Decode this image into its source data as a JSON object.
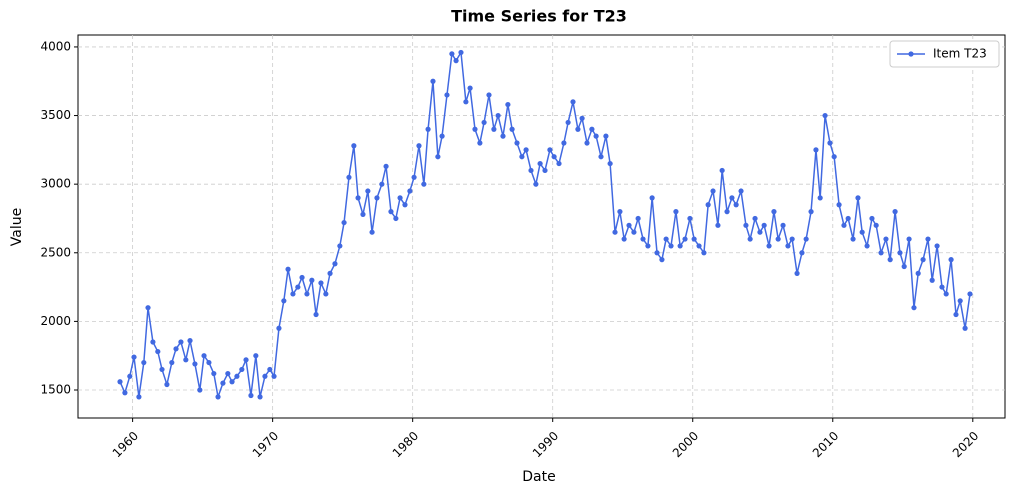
{
  "chart_data": {
    "type": "line",
    "title": "Time Series for T23",
    "x_label": "Date",
    "y_label": "Value",
    "x": [
      1959.1,
      1959.45,
      1959.8,
      1960.1,
      1960.45,
      1960.8,
      1961.1,
      1961.45,
      1961.8,
      1962.1,
      1962.45,
      1962.8,
      1963.1,
      1963.45,
      1963.8,
      1964.1,
      1964.45,
      1964.8,
      1965.1,
      1965.45,
      1965.8,
      1966.1,
      1966.45,
      1966.8,
      1967.1,
      1967.45,
      1967.8,
      1968.1,
      1968.45,
      1968.8,
      1969.1,
      1969.45,
      1969.8,
      1970.1,
      1970.45,
      1970.8,
      1971.1,
      1971.45,
      1971.8,
      1972.1,
      1972.45,
      1972.8,
      1973.1,
      1973.45,
      1973.8,
      1974.1,
      1974.45,
      1974.8,
      1975.1,
      1975.45,
      1975.8,
      1976.1,
      1976.45,
      1976.8,
      1977.1,
      1977.45,
      1977.8,
      1978.1,
      1978.45,
      1978.8,
      1979.1,
      1979.45,
      1979.8,
      1980.1,
      1980.45,
      1980.8,
      1981.1,
      1981.45,
      1981.8,
      1982.1,
      1982.45,
      1982.8,
      1983.1,
      1983.45,
      1983.8,
      1984.1,
      1984.45,
      1984.8,
      1985.1,
      1985.45,
      1985.8,
      1986.1,
      1986.45,
      1986.8,
      1987.1,
      1987.45,
      1987.8,
      1988.1,
      1988.45,
      1988.8,
      1989.1,
      1989.45,
      1989.8,
      1990.1,
      1990.45,
      1990.8,
      1991.1,
      1991.45,
      1991.8,
      1992.1,
      1992.45,
      1992.8,
      1993.1,
      1993.45,
      1993.8,
      1994.1,
      1994.45,
      1994.8,
      1995.1,
      1995.45,
      1995.8,
      1996.1,
      1996.45,
      1996.8,
      1997.1,
      1997.45,
      1997.8,
      1998.1,
      1998.45,
      1998.8,
      1999.1,
      1999.45,
      1999.8,
      2000.1,
      2000.45,
      2000.8,
      2001.1,
      2001.45,
      2001.8,
      2002.1,
      2002.45,
      2002.8,
      2003.1,
      2003.45,
      2003.8,
      2004.1,
      2004.45,
      2004.8,
      2005.1,
      2005.45,
      2005.8,
      2006.1,
      2006.45,
      2006.8,
      2007.1,
      2007.45,
      2007.8,
      2008.1,
      2008.45,
      2008.8,
      2009.1,
      2009.45,
      2009.8,
      2010.1,
      2010.45,
      2010.8,
      2011.1,
      2011.45,
      2011.8,
      2012.1,
      2012.45,
      2012.8,
      2013.1,
      2013.45,
      2013.8,
      2014.1,
      2014.45,
      2014.8,
      2015.1,
      2015.45,
      2015.8,
      2016.1,
      2016.45,
      2016.8,
      2017.1,
      2017.45,
      2017.8,
      2018.1,
      2018.45,
      2018.8,
      2019.1,
      2019.45,
      2019.8
    ],
    "series": [
      {
        "name": "Item T23",
        "color": "#4169e1",
        "values": [
          1560,
          1480,
          1600,
          1740,
          1450,
          1700,
          2100,
          1850,
          1780,
          1650,
          1540,
          1700,
          1800,
          1850,
          1720,
          1860,
          1690,
          1500,
          1750,
          1700,
          1620,
          1450,
          1550,
          1620,
          1560,
          1600,
          1650,
          1720,
          1460,
          1750,
          1450,
          1600,
          1650,
          1600,
          1950,
          2150,
          2380,
          2200,
          2250,
          2320,
          2200,
          2300,
          2050,
          2280,
          2200,
          2350,
          2420,
          2550,
          2720,
          3050,
          3280,
          2900,
          2780,
          2950,
          2650,
          2900,
          3000,
          3130,
          2800,
          2750,
          2900,
          2850,
          2950,
          3050,
          3280,
          3000,
          3400,
          3750,
          3200,
          3350,
          3650,
          3950,
          3900,
          3960,
          3600,
          3700,
          3400,
          3300,
          3450,
          3650,
          3400,
          3500,
          3350,
          3580,
          3400,
          3300,
          3200,
          3250,
          3100,
          3000,
          3150,
          3100,
          3250,
          3200,
          3150,
          3300,
          3450,
          3600,
          3400,
          3480,
          3300,
          3400,
          3350,
          3200,
          3350,
          3150,
          2650,
          2800,
          2600,
          2700,
          2650,
          2750,
          2600,
          2550,
          2900,
          2500,
          2450,
          2600,
          2550,
          2800,
          2550,
          2600,
          2750,
          2600,
          2550,
          2500,
          2850,
          2950,
          2700,
          3100,
          2800,
          2900,
          2850,
          2950,
          2700,
          2600,
          2750,
          2650,
          2700,
          2550,
          2800,
          2600,
          2700,
          2550,
          2600,
          2350,
          2500,
          2600,
          2800,
          3250,
          2900,
          3500,
          3300,
          3200,
          2850,
          2700,
          2750,
          2600,
          2900,
          2650,
          2550,
          2750,
          2700,
          2500,
          2600,
          2450,
          2800,
          2500,
          2400,
          2600,
          2100,
          2350,
          2450,
          2600,
          2300,
          2550,
          2250,
          2200,
          2450,
          2050,
          2150,
          1950,
          2200
        ]
      }
    ],
    "xlim": [
      1956.1,
      2022.3
    ],
    "xticks": [
      1960,
      1970,
      1980,
      1990,
      2000,
      2010,
      2020
    ],
    "ylim": [
      1296,
      4087
    ],
    "yticks": [
      1500,
      2000,
      2500,
      3000,
      3500,
      4000
    ],
    "grid": true,
    "legend": "upper right"
  }
}
